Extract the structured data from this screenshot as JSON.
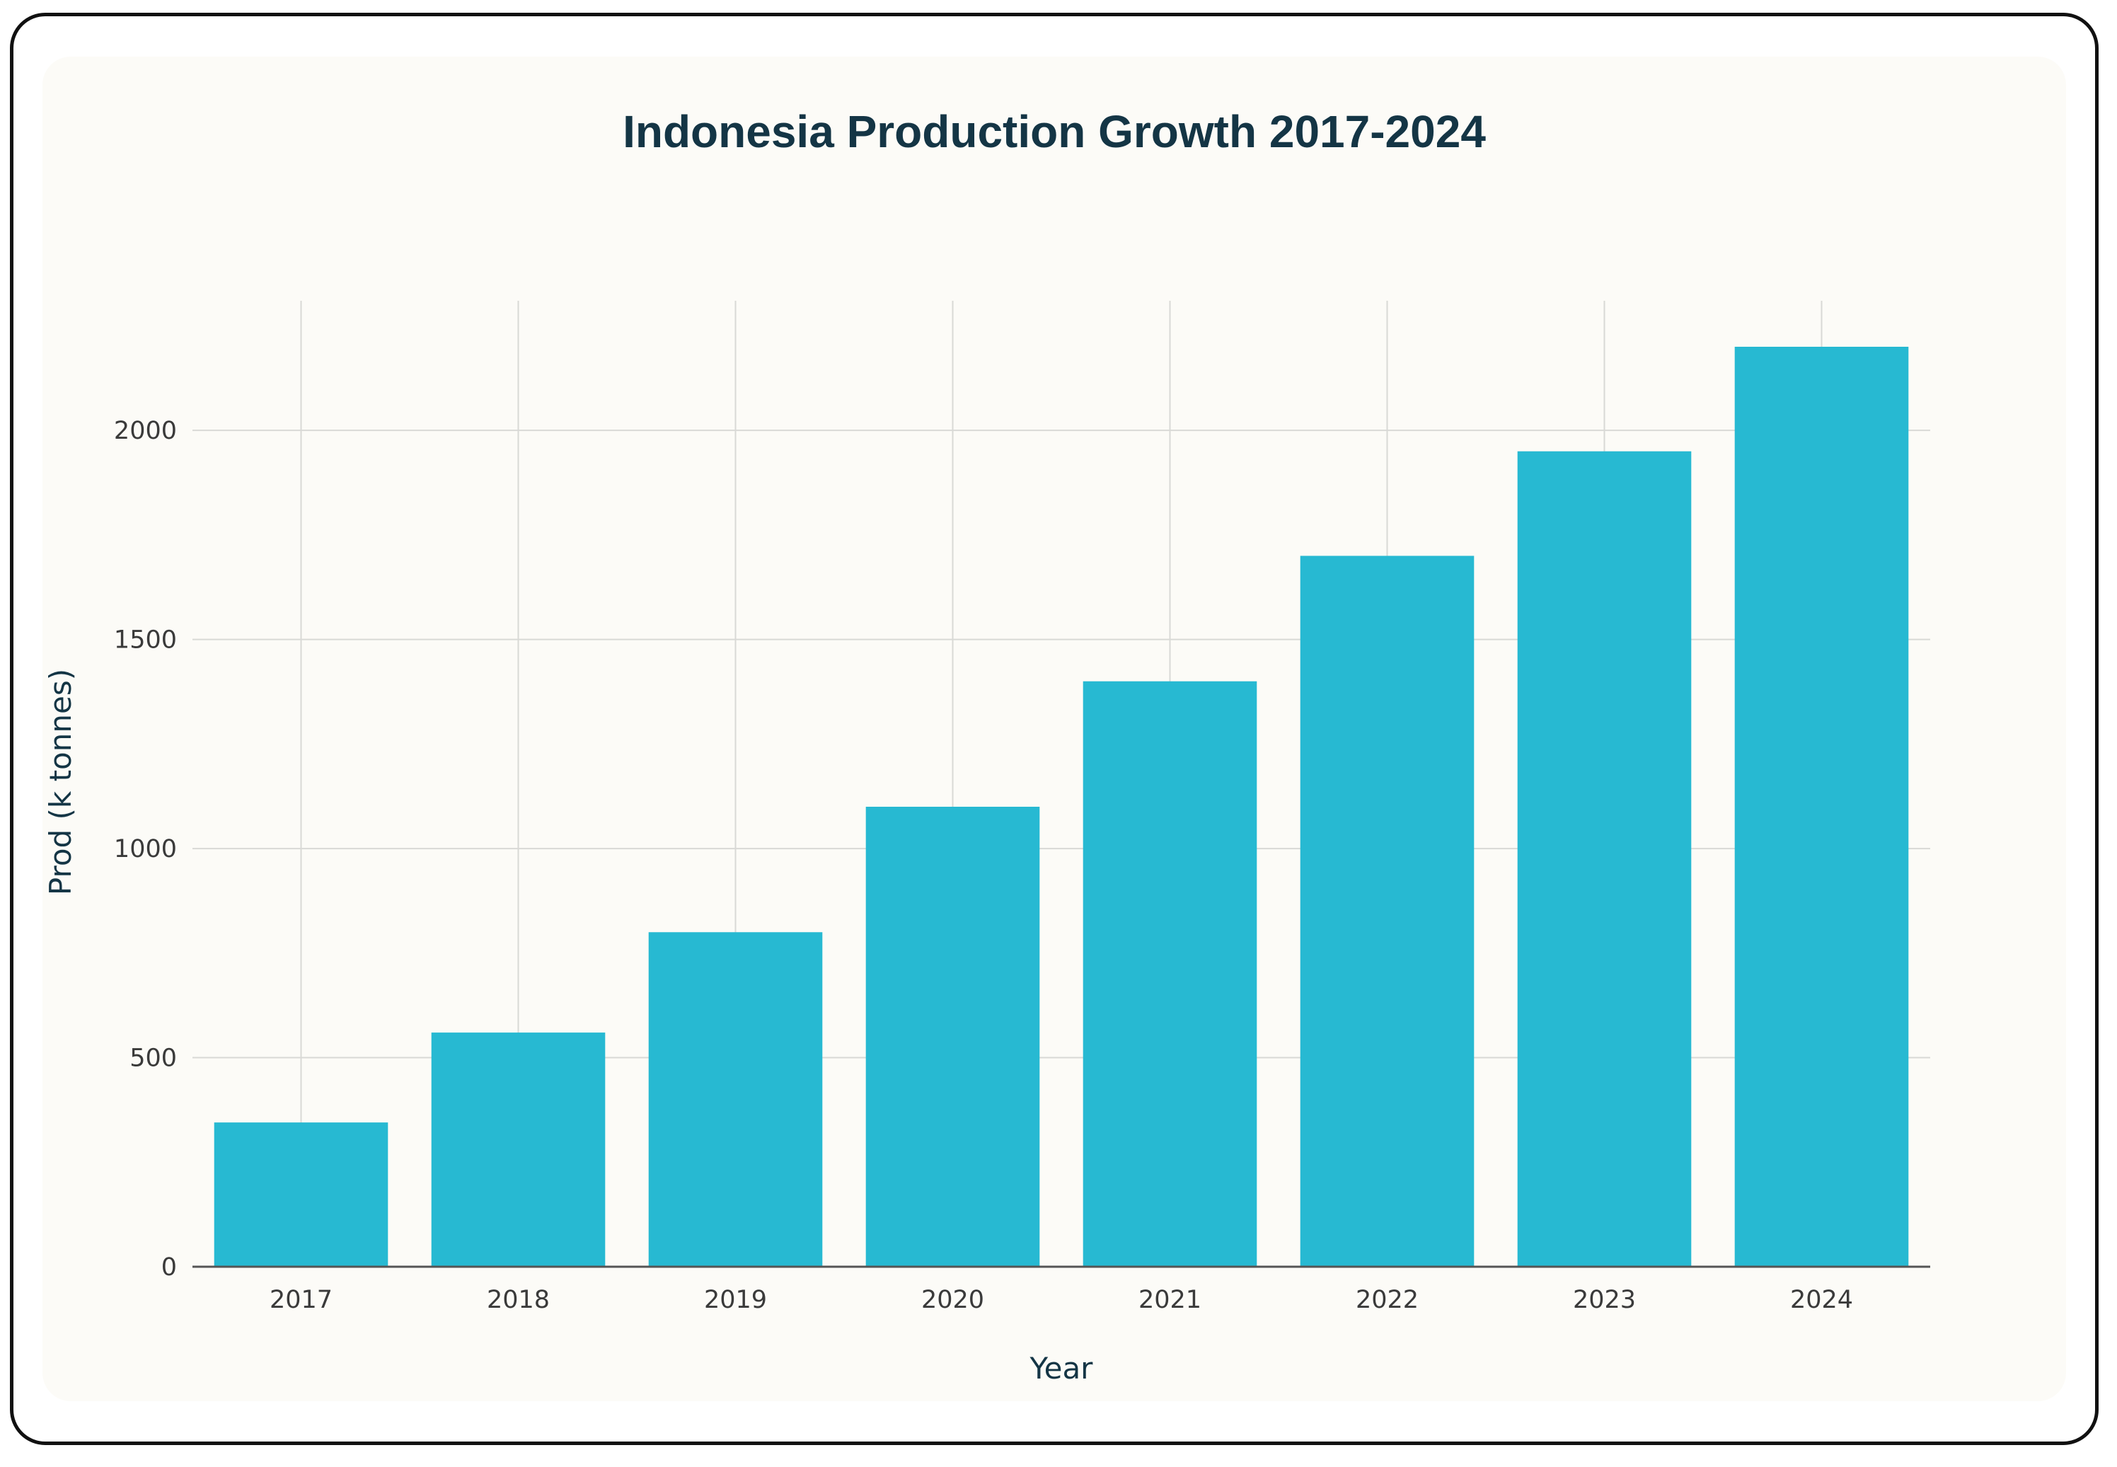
{
  "chart_data": {
    "type": "bar",
    "title": "Indonesia Production Growth 2017-2024",
    "xlabel": "Year",
    "ylabel": "Prod (k tonnes)",
    "categories": [
      "2017",
      "2018",
      "2019",
      "2020",
      "2021",
      "2022",
      "2023",
      "2024"
    ],
    "values": [
      345,
      560,
      800,
      1100,
      1400,
      1700,
      1950,
      2200
    ],
    "ylim": [
      0,
      2310
    ],
    "yticks": [
      0,
      500,
      1000,
      1500,
      2000
    ],
    "grid": true,
    "bar_color": "#27b9d2"
  }
}
